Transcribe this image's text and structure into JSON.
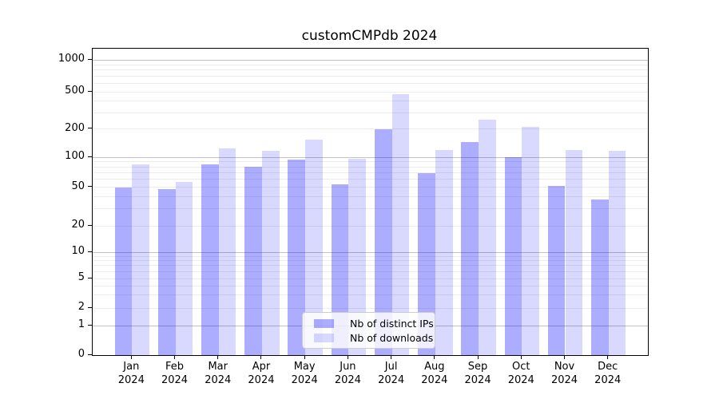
{
  "figure_title": "customCMPdb 2024",
  "chart_data": {
    "type": "bar",
    "title": "customCMPdb 2024",
    "xlabel": "",
    "ylabel": "",
    "categories": [
      "Jan",
      "Feb",
      "Mar",
      "Apr",
      "May",
      "Jun",
      "Jul",
      "Aug",
      "Sep",
      "Oct",
      "Nov",
      "Dec"
    ],
    "x_tick_year": "2024",
    "series": [
      {
        "name": "Nb of distinct IPs",
        "color": "rgba(0,0,255,0.32)",
        "values": [
          50,
          48,
          85,
          80,
          94,
          53,
          198,
          69,
          145,
          100,
          51,
          37
        ]
      },
      {
        "name": "Nb of downloads",
        "color": "rgba(0,0,255,0.15)",
        "values": [
          85,
          56,
          125,
          118,
          155,
          96,
          470,
          120,
          250,
          210,
          119,
          118
        ]
      }
    ],
    "y_axis": {
      "scale": "symlog",
      "tick_values": [
        0,
        1,
        2,
        5,
        10,
        20,
        50,
        100,
        200,
        500,
        1000
      ],
      "ylim": [
        0,
        1000
      ],
      "major_grid_values": [
        1,
        10,
        100,
        1000
      ]
    },
    "legend": {
      "position": "lower-center-inside",
      "items": [
        "Nb of distinct IPs",
        "Nb of downloads"
      ]
    },
    "grid": {
      "major": true,
      "minor": true
    }
  },
  "colors": {
    "bar_distinct_ips_rendered": "#ababfa",
    "bar_downloads_rendered": "#d9d9fb",
    "grid_major": "#c2c2c2",
    "grid_minor": "#ececec",
    "axis_spine": "#000000",
    "background": "#ffffff",
    "legend_border": "#cccccc"
  }
}
